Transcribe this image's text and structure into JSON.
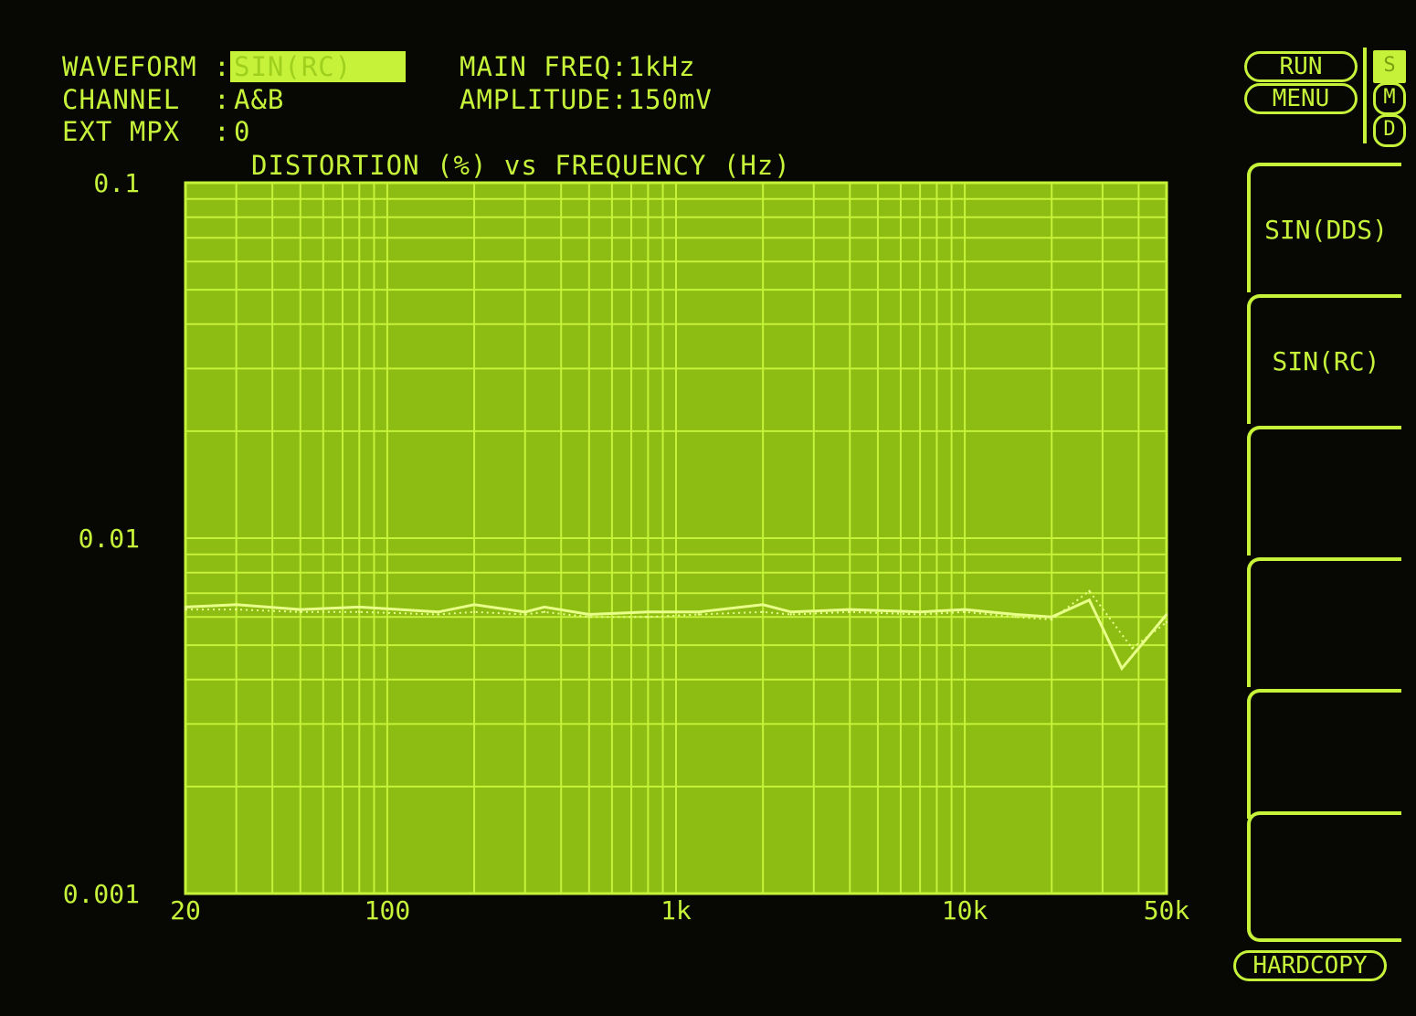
{
  "header": {
    "waveform_label": "WAVEFORM :",
    "waveform_value": "SIN(RC)",
    "channel_label": "CHANNEL  :",
    "channel_value": "A&B",
    "ext_mpx_label": "EXT MPX  :",
    "ext_mpx_value": "0",
    "main_freq": "MAIN FREQ:1kHz",
    "amplitude": "AMPLITUDE:150mV"
  },
  "controls": {
    "run": "RUN",
    "menu": "MENU",
    "modes": [
      "S",
      "M",
      "D"
    ],
    "active_mode": "S",
    "hardcopy": "HARDCOPY"
  },
  "softkeys": [
    "SIN(DDS)",
    "SIN(RC)",
    "",
    "",
    "",
    ""
  ],
  "colors": {
    "phosphor": "#c6f23a",
    "plot_fill": "#8dbd12",
    "trace": "#e8ff8a",
    "background": "#070803"
  },
  "chart_data": {
    "type": "line",
    "title": "DISTORTION (%) vs FREQUENCY (Hz)",
    "x_scale": "log",
    "y_scale": "log",
    "xlim": [
      20,
      50000
    ],
    "ylim": [
      0.001,
      0.1
    ],
    "x_ticks": [
      {
        "v": 20,
        "label": "20"
      },
      {
        "v": 100,
        "label": "100"
      },
      {
        "v": 1000,
        "label": "1k"
      },
      {
        "v": 10000,
        "label": "10k"
      },
      {
        "v": 50000,
        "label": "50k"
      }
    ],
    "y_ticks": [
      {
        "v": 0.1,
        "label": "0.1"
      },
      {
        "v": 0.01,
        "label": "0.01"
      },
      {
        "v": 0.001,
        "label": "0.001"
      }
    ],
    "grid": true,
    "series": [
      {
        "style": "solid",
        "points": [
          [
            20,
            0.0064
          ],
          [
            30,
            0.0065
          ],
          [
            50,
            0.0063
          ],
          [
            80,
            0.0064
          ],
          [
            150,
            0.0062
          ],
          [
            200,
            0.0065
          ],
          [
            300,
            0.0062
          ],
          [
            350,
            0.0064
          ],
          [
            500,
            0.0061
          ],
          [
            800,
            0.0062
          ],
          [
            1200,
            0.0062
          ],
          [
            2000,
            0.0065
          ],
          [
            2500,
            0.0062
          ],
          [
            4000,
            0.0063
          ],
          [
            7000,
            0.0062
          ],
          [
            10000,
            0.0063
          ],
          [
            15000,
            0.0061
          ],
          [
            20000,
            0.006
          ],
          [
            27000,
            0.0067
          ],
          [
            35000,
            0.0043
          ],
          [
            50000,
            0.0061
          ]
        ]
      },
      {
        "style": "dotted",
        "points": [
          [
            20,
            0.0063
          ],
          [
            30,
            0.0063
          ],
          [
            50,
            0.0062
          ],
          [
            80,
            0.0062
          ],
          [
            150,
            0.0061
          ],
          [
            200,
            0.0062
          ],
          [
            300,
            0.0061
          ],
          [
            350,
            0.0062
          ],
          [
            500,
            0.006
          ],
          [
            800,
            0.006
          ],
          [
            1200,
            0.0061
          ],
          [
            2000,
            0.0062
          ],
          [
            2500,
            0.0061
          ],
          [
            4000,
            0.0062
          ],
          [
            7000,
            0.0061
          ],
          [
            10000,
            0.0062
          ],
          [
            15000,
            0.006
          ],
          [
            20000,
            0.0059
          ],
          [
            27000,
            0.0071
          ],
          [
            38000,
            0.0049
          ],
          [
            50000,
            0.0058
          ]
        ]
      }
    ]
  }
}
